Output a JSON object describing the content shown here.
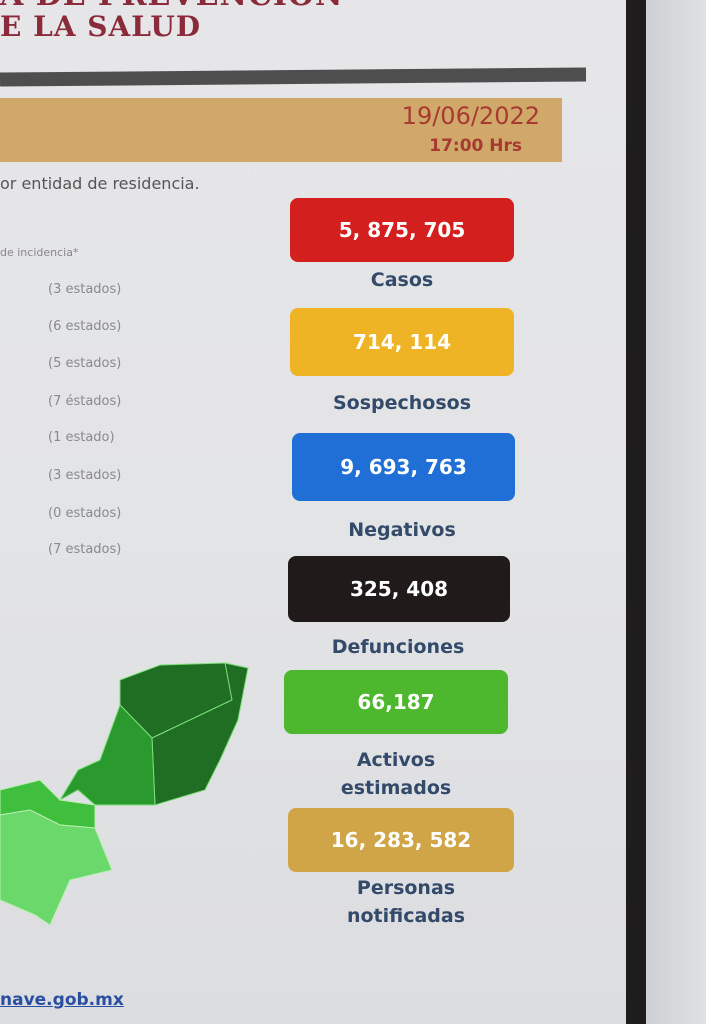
{
  "header": {
    "title_line1": "A DE PREVENCIÓN",
    "title_line2": "E LA SALUD"
  },
  "date_band": {
    "date": "19/06/2022",
    "time": "17:00 Hrs"
  },
  "subtitle": "or entidad de residencia.",
  "legend": {
    "heading": "de incidencia*",
    "items": [
      "(3 estados)",
      "(6 estados)",
      "(5 estados)",
      "(7 éstados)",
      "(1 estado)",
      "(3 estados)",
      "(0 estados)",
      "(7 estados)"
    ]
  },
  "stats": [
    {
      "value": "5, 875, 705",
      "label": "Casos",
      "color": "#d3201f"
    },
    {
      "value": "714, 114",
      "label": "Sospechosos",
      "color": "#efb326"
    },
    {
      "value": "9, 693, 763",
      "label": "Negativos",
      "color": "#1f6fd6"
    },
    {
      "value": "325, 408",
      "label": "Defunciones",
      "color": "#201a1a"
    },
    {
      "value": "66,187",
      "label_line1": "Activos",
      "label_line2": "estimados",
      "color": "#4db82e"
    },
    {
      "value": "16, 283, 582",
      "label_line1": "Personas",
      "label_line2": "notificadas",
      "color": "#d0a548"
    }
  ],
  "map_colors": [
    "#1f6e24",
    "#2b9a2e",
    "#3fbf3d",
    "#6ad86a"
  ],
  "footer": {
    "link": "nave.gob.mx"
  }
}
